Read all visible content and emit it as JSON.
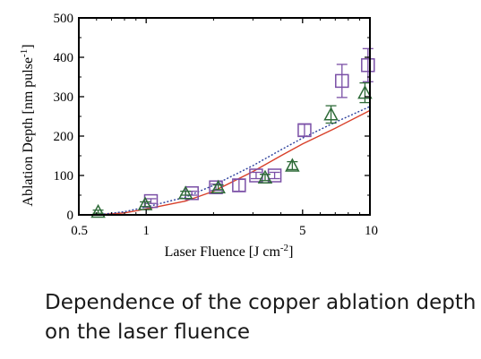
{
  "caption": {
    "line1": "Dependence of the copper ablation depth",
    "line2": "on the laser fluence"
  },
  "chart_data": {
    "type": "scatter",
    "xlabel": "Laser Fluence [J cm-2]",
    "xlabel_parts": {
      "main": "Laser Fluence [J cm",
      "sup": "-2",
      "close": "]"
    },
    "ylabel": "Ablation Depth [nm pulse-1]",
    "ylabel_parts": {
      "main": "Ablation Depth [nm pulse",
      "sup": "-1",
      "close": "]"
    },
    "x_scale": "log",
    "xlim": [
      0.5,
      10
    ],
    "ylim": [
      0,
      500
    ],
    "x_ticks": [
      {
        "value": 0.5,
        "label": "0.5"
      },
      {
        "value": 1,
        "label": "1"
      },
      {
        "value": 5,
        "label": "5"
      },
      {
        "value": 10,
        "label": "10"
      }
    ],
    "y_ticks": [
      {
        "value": 0,
        "label": "0"
      },
      {
        "value": 100,
        "label": "100"
      },
      {
        "value": 200,
        "label": "200"
      },
      {
        "value": 300,
        "label": "300"
      },
      {
        "value": 400,
        "label": "400"
      },
      {
        "value": 500,
        "label": "500"
      }
    ],
    "grid": false,
    "colors": {
      "squares": "#7a4fa6",
      "triangles": "#2e6b38",
      "solid_line": "#d8402a",
      "dotted_line": "#2b3f9c"
    },
    "scatter_series": [
      {
        "marker": "square",
        "color": "#7a4fa6",
        "points": [
          {
            "x": 1.05,
            "y": 35,
            "err": 6
          },
          {
            "x": 1.6,
            "y": 55,
            "err": 5
          },
          {
            "x": 2.05,
            "y": 70,
            "err": 8
          },
          {
            "x": 2.6,
            "y": 75,
            "err": 15
          },
          {
            "x": 3.1,
            "y": 100,
            "err": 8
          },
          {
            "x": 3.75,
            "y": 100,
            "err": 8
          },
          {
            "x": 5.1,
            "y": 215,
            "err": 15
          },
          {
            "x": 7.5,
            "y": 340,
            "err": 42
          },
          {
            "x": 9.8,
            "y": 380,
            "err": 42
          }
        ]
      },
      {
        "marker": "triangle",
        "color": "#2e6b38",
        "points": [
          {
            "x": 0.61,
            "y": 8,
            "err": 4
          },
          {
            "x": 0.99,
            "y": 27,
            "err": 6
          },
          {
            "x": 1.5,
            "y": 55,
            "err": 5
          },
          {
            "x": 2.1,
            "y": 70,
            "err": 6
          },
          {
            "x": 3.4,
            "y": 95,
            "err": 8
          },
          {
            "x": 4.5,
            "y": 125,
            "err": 10
          },
          {
            "x": 6.7,
            "y": 255,
            "err": 22
          },
          {
            "x": 9.5,
            "y": 310,
            "err": 25
          }
        ]
      }
    ],
    "line_series": [
      {
        "style": "solid",
        "color": "#d8402a",
        "x": [
          0.6,
          0.8,
          1.0,
          1.5,
          2.0,
          3.0,
          4.0,
          5.0,
          7.0,
          10.0
        ],
        "y": [
          0,
          5,
          15,
          35,
          60,
          110,
          150,
          180,
          220,
          265
        ]
      },
      {
        "style": "dotted",
        "color": "#2b3f9c",
        "x": [
          0.6,
          0.8,
          1.0,
          1.5,
          2.0,
          3.0,
          4.0,
          5.0,
          7.0,
          10.0
        ],
        "y": [
          0,
          8,
          20,
          45,
          75,
          125,
          165,
          195,
          235,
          275
        ]
      }
    ]
  }
}
